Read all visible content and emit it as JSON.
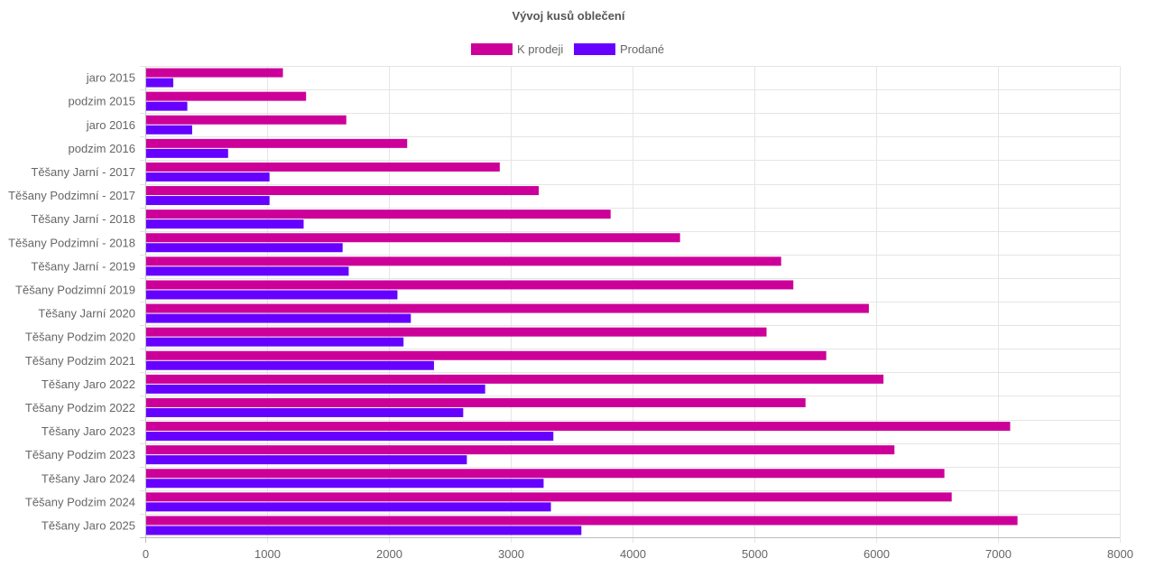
{
  "chart_data": {
    "type": "bar",
    "orientation": "horizontal",
    "title": "Vývoj kusů oblečení",
    "categories": [
      "jaro 2015",
      "podzim 2015",
      "jaro 2016",
      "podzim 2016",
      "Těšany Jarní - 2017",
      "Těšany Podzimní - 2017",
      "Těšany Jarní - 2018",
      "Těšany Podzimní - 2018",
      "Těšany Jarní - 2019",
      "Těšany Podzimní 2019",
      "Těšany Jarní 2020",
      "Těšany Podzim 2020",
      "Těšany Podzim 2021",
      "Těšany Jaro 2022",
      "Těšany Podzim 2022",
      "Těšany Jaro 2023",
      "Těšany Podzim 2023",
      "Těšany Jaro 2024",
      "Těšany Podzim 2024",
      "Těšany Jaro 2025"
    ],
    "series": [
      {
        "name": "K prodeji",
        "color": "#cc0099",
        "values": [
          1130,
          1320,
          1650,
          2150,
          2910,
          3230,
          3820,
          4390,
          5220,
          5320,
          5940,
          5100,
          5590,
          6060,
          5420,
          7100,
          6150,
          6560,
          6620,
          7160
        ]
      },
      {
        "name": "Prodané",
        "color": "#6600ff",
        "values": [
          230,
          345,
          385,
          680,
          1020,
          1020,
          1300,
          1620,
          1670,
          2070,
          2180,
          2120,
          2370,
          2790,
          2610,
          3350,
          2640,
          3270,
          3330,
          3580
        ]
      }
    ],
    "xlim": [
      0,
      8000
    ],
    "xticks": [
      "0",
      "1000",
      "2000",
      "3000",
      "4000",
      "5000",
      "6000",
      "7000",
      "8000"
    ],
    "grid": true,
    "legend": "top"
  }
}
